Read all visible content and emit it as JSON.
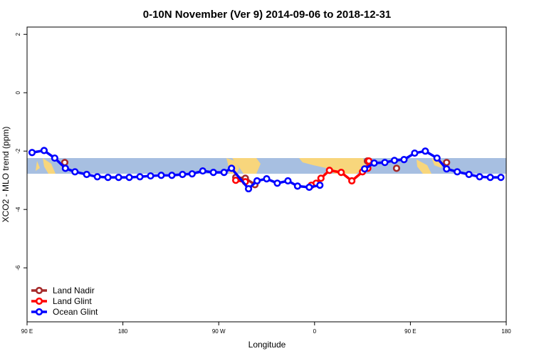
{
  "chart_data": {
    "type": "line",
    "title": "0-10N November (Ver 9)   2014-09-06 to 2018-12-31",
    "x_label": "Longitude",
    "y_label": "XCO2 - MLO trend (ppm)",
    "xlim": [
      90,
      540
    ],
    "xticks": [
      {
        "value": 90,
        "label": "90 E"
      },
      {
        "value": 180,
        "label": "180"
      },
      {
        "value": 270,
        "label": "90 W"
      },
      {
        "value": 360,
        "label": "0"
      },
      {
        "value": 450,
        "label": "90 E"
      },
      {
        "value": 540,
        "label": "180"
      }
    ],
    "ylim": [
      -7.85,
      2.25
    ],
    "yticks": [
      2,
      0,
      -2,
      -4,
      -6
    ],
    "legend": "bottom-left",
    "series": [
      {
        "name": "Land Nadir",
        "color": "#a52a2a",
        "x": [
          125.4,
          null,
          286,
          295,
          304,
          null,
          409.6,
          null,
          437,
          null,
          484
        ],
        "values": [
          -2.39,
          null,
          -2.9,
          -2.93,
          -3.15,
          null,
          -2.34,
          null,
          -2.59,
          null,
          -2.39
        ]
      },
      {
        "name": "Land Glint",
        "color": "#ff0000",
        "x": [
          286,
          295,
          null,
          357,
          361.5,
          366,
          374,
          385,
          395,
          405,
          410,
          411
        ],
        "values": [
          -3.0,
          -3.05,
          null,
          -3.17,
          -3.1,
          -2.93,
          -2.66,
          -2.73,
          -3.02,
          -2.71,
          -2.59,
          -2.34
        ]
      },
      {
        "name": "Ocean Glint",
        "color": "#0000ff",
        "x": [
          94.7,
          106,
          116,
          126,
          135,
          146,
          156,
          166,
          176,
          186,
          196,
          206,
          216,
          226,
          236,
          245,
          255,
          265,
          275,
          282,
          298,
          306,
          315,
          325,
          335,
          344,
          355,
          365,
          null,
          407,
          416,
          426,
          435,
          444,
          454,
          464,
          475,
          484,
          494,
          505,
          515,
          525,
          535
        ],
        "values": [
          -2.05,
          -1.98,
          -2.24,
          -2.59,
          -2.71,
          -2.8,
          -2.88,
          -2.9,
          -2.9,
          -2.9,
          -2.88,
          -2.85,
          -2.83,
          -2.83,
          -2.8,
          -2.78,
          -2.68,
          -2.73,
          -2.73,
          -2.59,
          -3.29,
          -3.02,
          -2.95,
          -3.1,
          -3.02,
          -3.2,
          -3.24,
          -3.17,
          null,
          -2.61,
          -2.41,
          -2.39,
          -2.32,
          -2.29,
          -2.07,
          -2.0,
          -2.24,
          -2.61,
          -2.71,
          -2.8,
          -2.88,
          -2.9,
          -2.9
        ]
      }
    ]
  }
}
